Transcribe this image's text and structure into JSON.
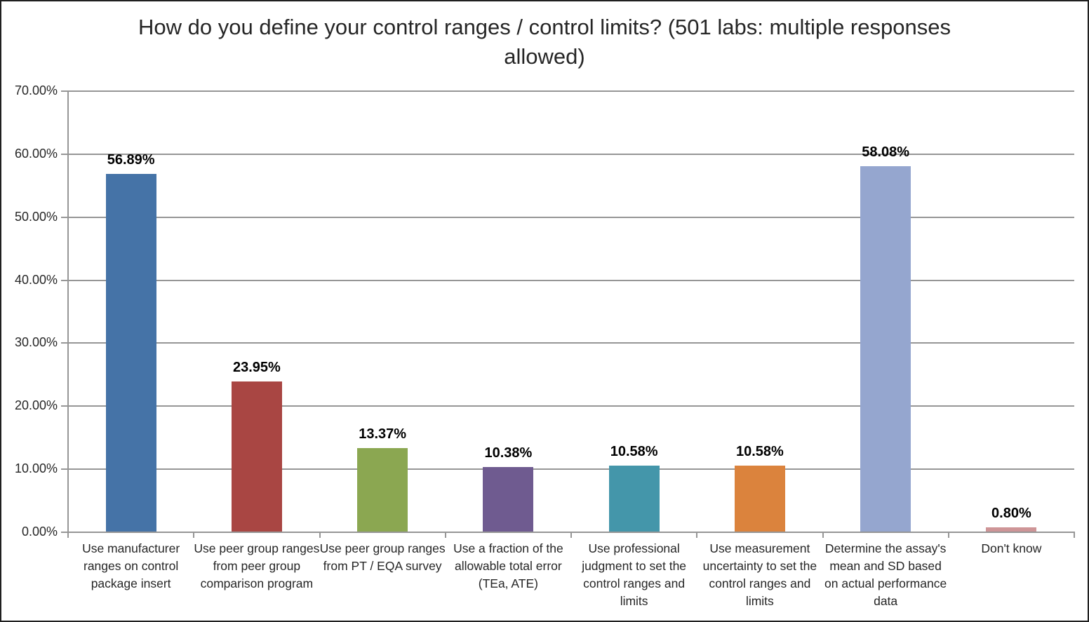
{
  "chart_data": {
    "type": "bar",
    "title": "How do you define your control ranges / control limits? (501 labs: multiple responses allowed)",
    "categories": [
      "Use manufacturer ranges on control package insert",
      "Use peer group ranges from peer group comparison program",
      "Use peer group ranges from PT / EQA survey",
      "Use a fraction of the allowable total error (TEa, ATE)",
      "Use professional judgment to set the control ranges and limits",
      "Use measurement uncertainty to set the control ranges and limits",
      "Determine the assay's mean and SD based on actual performance data",
      "Don't know"
    ],
    "values": [
      56.89,
      23.95,
      13.37,
      10.38,
      10.58,
      10.58,
      58.08,
      0.8
    ],
    "value_labels": [
      "56.89%",
      "23.95%",
      "13.37%",
      "10.38%",
      "10.58%",
      "10.58%",
      "58.08%",
      "0.80%"
    ],
    "bar_colors": [
      "#4573A7",
      "#A94643",
      "#8BA751",
      "#6F5B90",
      "#4496AA",
      "#DB833D",
      "#95A6CF",
      "#CE9597"
    ],
    "xlabel": "",
    "ylabel": "",
    "ylim": [
      0,
      70
    ],
    "yticks": [
      0,
      10,
      20,
      30,
      40,
      50,
      60,
      70
    ],
    "ytick_labels": [
      "0.00%",
      "10.00%",
      "20.00%",
      "30.00%",
      "40.00%",
      "50.00%",
      "60.00%",
      "70.00%"
    ],
    "grid": "horizontal",
    "legend": "none",
    "axis_color": "#969696",
    "grid_color": "#969696",
    "text_color": "#262626"
  }
}
